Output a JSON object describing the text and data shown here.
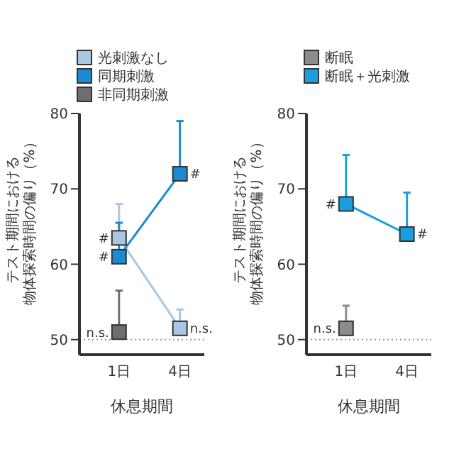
{
  "chart_data": [
    {
      "type": "line",
      "xlabel": "休息期間",
      "ylabel": "テスト期間における物体探索時間の偏り（%）",
      "categories": [
        "1日",
        "4日"
      ],
      "ylim": [
        48,
        80
      ],
      "yticks": [
        50,
        60,
        70,
        80
      ],
      "legend": "top left",
      "marker": "square",
      "line_style": "solid",
      "series": [
        {
          "name": "光刺激なし",
          "color": "#a9c6e3",
          "values": [
            63.5,
            51.5
          ],
          "errors": [
            [
              63.5,
              68
            ],
            [
              51.5,
              54
            ]
          ]
        },
        {
          "name": "同期刺激",
          "color": "#1a8ad4",
          "values": [
            61,
            72
          ],
          "errors": [
            [
              61,
              65.5
            ],
            [
              72,
              79
            ]
          ]
        },
        {
          "name": "非同期刺激",
          "color": "#6e6e6e",
          "values": [
            51,
            null
          ],
          "errors": [
            [
              51,
              56.5
            ],
            null
          ]
        }
      ],
      "ref_lines": [
        {
          "axis": "y",
          "value": 50,
          "color": "#999999",
          "line_style": "dotted"
        }
      ],
      "annotations": [
        {
          "text": "#",
          "x": "1日",
          "y": 63.5
        },
        {
          "text": "#",
          "x": "1日",
          "y": 61
        },
        {
          "text": "#",
          "x": "4日",
          "y": 72
        },
        {
          "text": "n.s.",
          "x": "1日",
          "y": 51
        },
        {
          "text": "n.s.",
          "x": "4日",
          "y": 51.5
        }
      ]
    },
    {
      "type": "line",
      "xlabel": "休息期間",
      "ylabel": "テスト期間における物体探索時間の偏り（%）",
      "categories": [
        "1日",
        "4日"
      ],
      "ylim": [
        48,
        80
      ],
      "yticks": [
        50,
        60,
        70,
        80
      ],
      "legend": "top left",
      "marker": "square",
      "line_style": "solid",
      "series": [
        {
          "name": "断眠",
          "color": "#8c8c8c",
          "values": [
            51.5,
            null
          ],
          "errors": [
            [
              51.5,
              54.5
            ],
            null
          ]
        },
        {
          "name": "断眠＋光刺激",
          "color": "#1a9ee0",
          "values": [
            68,
            64
          ],
          "errors": [
            [
              68,
              74.5
            ],
            [
              64,
              69.5
            ]
          ]
        }
      ],
      "ref_lines": [
        {
          "axis": "y",
          "value": 50,
          "color": "#999999",
          "line_style": "dotted"
        }
      ],
      "annotations": [
        {
          "text": "#",
          "x": "1日",
          "y": 68
        },
        {
          "text": "#",
          "x": "4日",
          "y": 64
        },
        {
          "text": "n.s.",
          "x": "1日",
          "y": 51.5
        }
      ]
    }
  ]
}
